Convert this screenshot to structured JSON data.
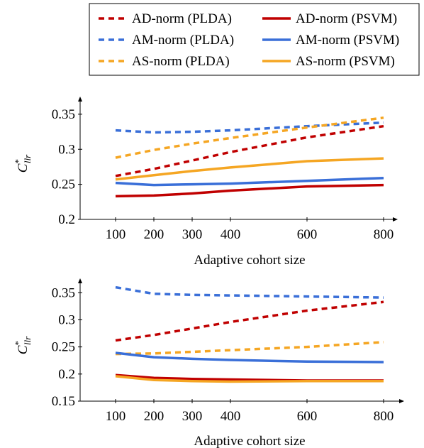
{
  "legend": {
    "entries": [
      {
        "label": "AD-norm (PLDA)",
        "color": "#c00000",
        "dash": "dashed"
      },
      {
        "label": "AD-norm (PSVM)",
        "color": "#c00000",
        "dash": "solid"
      },
      {
        "label": "AM-norm (PLDA)",
        "color": "#3a6fd8",
        "dash": "dashed"
      },
      {
        "label": "AM-norm (PSVM)",
        "color": "#3a6fd8",
        "dash": "solid"
      },
      {
        "label": "AS-norm (PLDA)",
        "color": "#f5a623",
        "dash": "dashed"
      },
      {
        "label": "AS-norm (PSVM)",
        "color": "#f5a623",
        "dash": "solid"
      }
    ]
  },
  "chart_data": [
    {
      "type": "line",
      "xlabel": "Adaptive cohort size",
      "ylabel_main": "C",
      "ylabel_sup": "*",
      "ylabel_sub": "llr",
      "x": [
        100,
        200,
        300,
        400,
        600,
        800
      ],
      "xticks": [
        100,
        200,
        300,
        400,
        600,
        800
      ],
      "xtick_labels": [
        "100",
        "200",
        "300",
        "400",
        "600",
        "800"
      ],
      "xlim": [
        0,
        860
      ],
      "ylim": [
        0.2,
        0.36
      ],
      "yticks": [
        0.2,
        0.25,
        0.3,
        0.35
      ],
      "ytick_labels": [
        "0.2",
        "0.25",
        "0.3",
        "0.35"
      ],
      "series": [
        {
          "name": "AD-norm (PLDA)",
          "values": [
            0.262,
            0.272,
            0.284,
            0.296,
            0.317,
            0.333
          ]
        },
        {
          "name": "AM-norm (PLDA)",
          "values": [
            0.327,
            0.324,
            0.325,
            0.327,
            0.333,
            0.338
          ]
        },
        {
          "name": "AS-norm (PLDA)",
          "values": [
            0.288,
            0.299,
            0.308,
            0.316,
            0.331,
            0.345
          ]
        },
        {
          "name": "AD-norm (PSVM)",
          "values": [
            0.233,
            0.234,
            0.237,
            0.241,
            0.247,
            0.249
          ]
        },
        {
          "name": "AM-norm (PSVM)",
          "values": [
            0.252,
            0.249,
            0.25,
            0.251,
            0.255,
            0.259
          ]
        },
        {
          "name": "AS-norm (PSVM)",
          "values": [
            0.257,
            0.263,
            0.269,
            0.274,
            0.283,
            0.287
          ]
        }
      ]
    },
    {
      "type": "line",
      "xlabel": "Adaptive cohort size",
      "ylabel_main": "C",
      "ylabel_sup": "*",
      "ylabel_sub": "llr",
      "x": [
        100,
        200,
        300,
        400,
        600,
        800
      ],
      "xticks": [
        100,
        200,
        300,
        400,
        600,
        800
      ],
      "xtick_labels": [
        "100",
        "200",
        "300",
        "400",
        "600",
        "800"
      ],
      "xlim": [
        0,
        860
      ],
      "ylim": [
        0.15,
        0.37
      ],
      "yticks": [
        0.15,
        0.2,
        0.25,
        0.3,
        0.35
      ],
      "ytick_labels": [
        "0.15",
        "0.2",
        "0.25",
        "0.3",
        "0.35"
      ],
      "series": [
        {
          "name": "AD-norm (PLDA)",
          "values": [
            0.262,
            0.272,
            0.284,
            0.296,
            0.317,
            0.333
          ]
        },
        {
          "name": "AM-norm (PLDA)",
          "values": [
            0.36,
            0.348,
            0.346,
            0.345,
            0.343,
            0.341
          ]
        },
        {
          "name": "AS-norm (PLDA)",
          "values": [
            0.237,
            0.238,
            0.241,
            0.244,
            0.25,
            0.259
          ]
        },
        {
          "name": "AD-norm (PSVM)",
          "values": [
            0.198,
            0.193,
            0.191,
            0.19,
            0.188,
            0.188
          ]
        },
        {
          "name": "AM-norm (PSVM)",
          "values": [
            0.239,
            0.231,
            0.228,
            0.226,
            0.223,
            0.222
          ]
        },
        {
          "name": "AS-norm (PSVM)",
          "values": [
            0.196,
            0.189,
            0.187,
            0.186,
            0.187,
            0.187
          ]
        }
      ]
    }
  ]
}
